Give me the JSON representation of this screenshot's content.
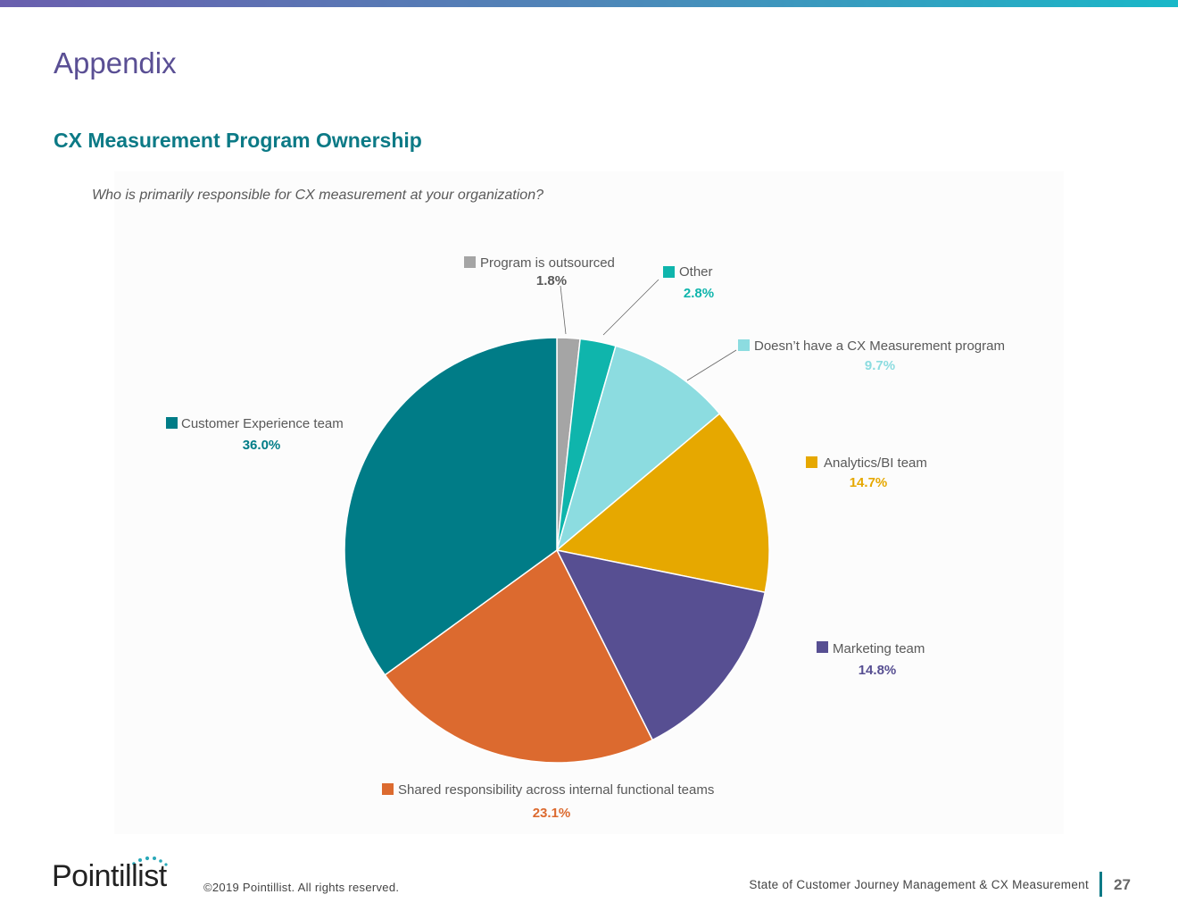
{
  "header": {
    "title": "Appendix",
    "section_title": "CX Measurement Program Ownership",
    "accent_start": "#6a5fae",
    "accent_end": "#19b8c8"
  },
  "chart_data": {
    "type": "pie",
    "title": "Who is primarily responsible for CX measurement at your organization?",
    "start_angle_deg": 0,
    "direction": "clockwise",
    "slices": [
      {
        "label": "Program is outsourced",
        "value": 1.8,
        "display": "1.8%",
        "color": "#a5a5a5",
        "value_color": "#595959"
      },
      {
        "label": "Other",
        "value": 2.8,
        "display": "2.8%",
        "color": "#0fb5ac",
        "value_color": "#0fb5ac"
      },
      {
        "label": "Doesn’t have a CX Measurement program",
        "value": 9.7,
        "display": "9.7%",
        "color": "#8cdce0",
        "value_color": "#8cdce0"
      },
      {
        "label": "Analytics/BI team",
        "value": 14.7,
        "display": "14.7%",
        "color": "#e6a800",
        "value_color": "#e6a800"
      },
      {
        "label": "Marketing team",
        "value": 14.8,
        "display": "14.8%",
        "color": "#574f92",
        "value_color": "#574f92"
      },
      {
        "label": "Shared responsibility across internal functional teams",
        "value": 23.1,
        "display": "23.1%",
        "color": "#dc6a2f",
        "value_color": "#dc6a2f"
      },
      {
        "label": "Customer Experience team",
        "value": 36.0,
        "display": "36.0%",
        "color": "#007c87",
        "value_color": "#007c87"
      }
    ]
  },
  "footer": {
    "logo_text": "Pointillist",
    "copyright": "©2019 Pointillist. All rights reserved.",
    "report_title": "State of Customer Journey Management & CX Measurement",
    "page_number": "27"
  }
}
